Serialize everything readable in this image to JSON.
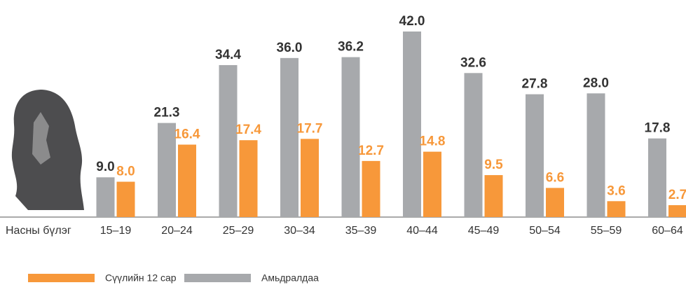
{
  "chart_data": {
    "type": "bar",
    "x_label": "Насны бүлэг",
    "categories": [
      "15–19",
      "20–24",
      "25–29",
      "30–34",
      "35–39",
      "40–44",
      "45–49",
      "50–54",
      "55–59",
      "60–64"
    ],
    "series": [
      {
        "name": "Амьдралдаа",
        "color": "#a7a9ac",
        "values": [
          9.0,
          21.3,
          34.4,
          36.0,
          36.2,
          42.0,
          32.6,
          27.8,
          28.0,
          17.8
        ],
        "value_labels": [
          "9.0",
          "21.3",
          "34.4",
          "36.0",
          "36.2",
          "42.0",
          "32.6",
          "27.8",
          "28.0",
          "17.8"
        ],
        "label_color": "#333333"
      },
      {
        "name": "Сүүлийн 12 сар",
        "color": "#f7983a",
        "values": [
          8.0,
          16.4,
          17.4,
          17.7,
          12.7,
          14.8,
          9.5,
          6.6,
          3.6,
          2.7
        ],
        "value_labels": [
          "8.0",
          "16.4",
          "17.4",
          "17.7",
          "12.7",
          "14.8",
          "9.5",
          "6.6",
          "3.6",
          "2.7"
        ],
        "label_color": "#f7983a"
      }
    ],
    "legend_order": [
      1,
      0
    ]
  }
}
